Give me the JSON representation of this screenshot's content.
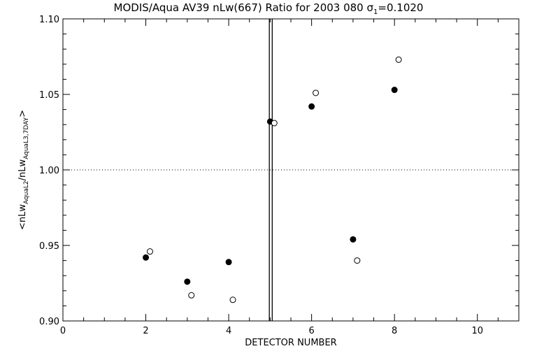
{
  "chart_data": {
    "type": "scatter",
    "title": "MODIS/Aqua AV39 nLw(667) Ratio for 2003 080 σ",
    "title_sub": "1",
    "title_suffix": "=0.1020",
    "xlabel": "DETECTOR NUMBER",
    "ylabel": {
      "open": "<nLw",
      "sub1": "AquaL2",
      "mid": "/nLw",
      "sub2": "AquaL3,7DAY",
      "close": ">"
    },
    "xlim": [
      0,
      11
    ],
    "ylim": [
      0.9,
      1.1
    ],
    "xticks": [
      0,
      2,
      4,
      6,
      8,
      10
    ],
    "xtick_labels": [
      "0",
      "2",
      "4",
      "6",
      "8",
      "10"
    ],
    "yticks": [
      0.9,
      0.95,
      1.0,
      1.05,
      1.1
    ],
    "ytick_labels": [
      "0.90",
      "0.95",
      "1.00",
      "1.05",
      "1.10"
    ],
    "reference_line_y": 1.0,
    "vertical_lines_x": [
      4.98,
      5.05
    ],
    "series": [
      {
        "marker": "filled-circle",
        "x": [
          2,
          3,
          4,
          5,
          6,
          7,
          8
        ],
        "y": [
          0.942,
          0.926,
          0.939,
          1.032,
          1.042,
          0.954,
          1.053
        ]
      },
      {
        "marker": "open-circle",
        "x": [
          2.1,
          3.1,
          4.1,
          5.1,
          6.1,
          7.1,
          8.1
        ],
        "y": [
          0.946,
          0.917,
          0.914,
          1.031,
          1.051,
          0.94,
          1.073
        ]
      }
    ]
  }
}
